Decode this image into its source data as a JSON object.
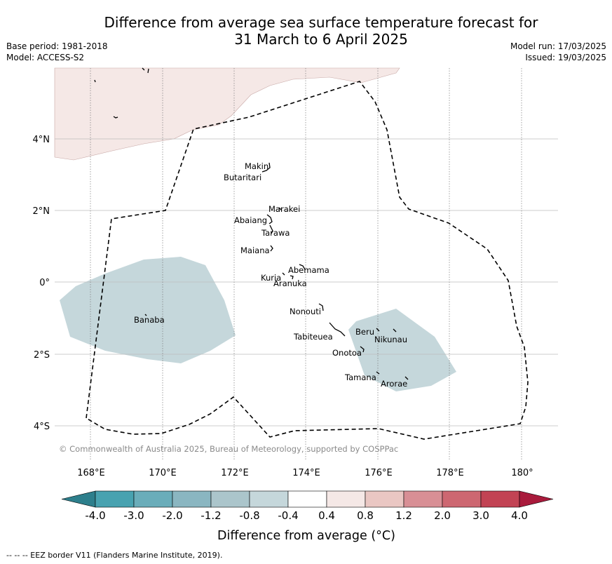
{
  "header": {
    "title_line1": "Difference from average sea surface temperature forecast for",
    "title_line2": "31 March to 6 April 2025",
    "base_period": "Base period: 1981-2018",
    "model": "Model: ACCESS-S2",
    "model_run": "Model run: 17/03/2025",
    "issued": "Issued: 19/03/2025"
  },
  "map": {
    "lat_ticks": [
      "4°N",
      "2°N",
      "0°",
      "2°S",
      "4°S"
    ],
    "lon_ticks": [
      "168°E",
      "170°E",
      "172°E",
      "174°E",
      "176°E",
      "178°E",
      "180°"
    ],
    "places": [
      "Makin",
      "Butaritari",
      "Marakei",
      "Abaiang",
      "Tarawa",
      "Maiana",
      "Abemama",
      "Kuria",
      "Aranuka",
      "Nonouti",
      "Banaba",
      "Tabiteuea",
      "Beru",
      "Nikunau",
      "Onotoa",
      "Tamana",
      "Arorae"
    ],
    "copyright": "© Commonwealth of Australia 2025, Bureau of Meteorology, supported by COSPPac",
    "eez_color": "#000000"
  },
  "colorbar": {
    "ticks": [
      "-4.0",
      "-3.0",
      "-2.0",
      "-1.2",
      "-0.8",
      "-0.4",
      "0.4",
      "0.8",
      "1.2",
      "2.0",
      "3.0",
      "4.0"
    ],
    "colors": [
      "#2d7f8c",
      "#48a2b0",
      "#6aadba",
      "#8ab6c1",
      "#abc5cb",
      "#c5d7db",
      "#ffffff",
      "#f5e8e6",
      "#eac7c3",
      "#d88f95",
      "#cd6771",
      "#c24354",
      "#a91b3c"
    ],
    "label": "Difference from average (°C)"
  },
  "footer": {
    "legend_text": "-- -- -- EEZ border V11 (Flanders Marine Institute, 2019)."
  }
}
